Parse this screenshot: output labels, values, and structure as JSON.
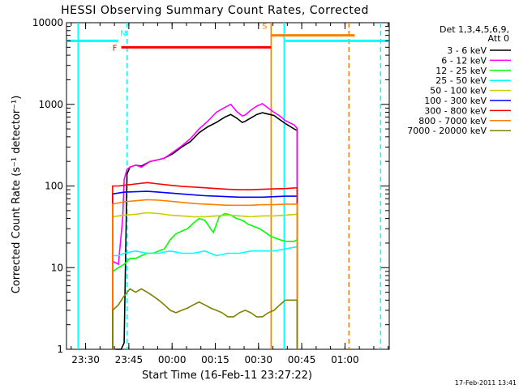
{
  "chart_data": {
    "type": "line",
    "title": "HESSI Observing Summary Count Rates, Corrected",
    "xlabel": "Start Time (16-Feb-11 23:27:22)",
    "ylabel": "Corrected Count Rate (s⁻¹ detector⁻¹)",
    "yscale": "log",
    "ylim": [
      1,
      10000
    ],
    "xlim_minutes_after_start": [
      -4,
      108
    ],
    "x_ticks": [
      "23:30",
      "23:45",
      "00:00",
      "00:15",
      "00:30",
      "00:45",
      "01:00"
    ],
    "y_ticks": [
      "1",
      "10",
      "100",
      "1000",
      "10000"
    ],
    "timestamp": "17-Feb-2011 13:41",
    "legend": {
      "header1": "Det 1,3,4,5,6,9,",
      "header2": "Att 0",
      "placement": "top-right outside"
    },
    "flags": [
      {
        "label": "F",
        "color": "#ff0000",
        "value": 5000,
        "t_start": 15,
        "t_end": 67
      },
      {
        "label": "N",
        "color": "#00ffff",
        "value": 6000,
        "t_start": -4,
        "t_end": 14
      },
      {
        "label": "N",
        "color": "#00ffff",
        "value": 6000,
        "t_start": 72,
        "t_end": 108
      },
      {
        "label": "S",
        "color": "#ff8000",
        "value": 7000,
        "t_start": 67,
        "t_end": 96
      }
    ],
    "vlines": [
      {
        "t": 0,
        "color": "#00ffff",
        "style": "solid"
      },
      {
        "t": 17,
        "color": "#00ffff",
        "style": "dashed"
      },
      {
        "t": 71.5,
        "color": "#00ffff",
        "style": "solid"
      },
      {
        "t": 105,
        "color": "#00ffff",
        "style": "dashed"
      },
      {
        "t": 67,
        "color": "#ff8000",
        "style": "solid"
      },
      {
        "t": 94,
        "color": "#ff8000",
        "style": "dashed"
      }
    ],
    "series": [
      {
        "name": "3 - 6 keV",
        "color": "#000000",
        "points": [
          [
            13,
            1
          ],
          [
            15,
            1
          ],
          [
            16,
            1.2
          ],
          [
            17,
            140
          ],
          [
            18,
            170
          ],
          [
            20,
            180
          ],
          [
            22,
            175
          ],
          [
            25,
            200
          ],
          [
            28,
            210
          ],
          [
            30,
            220
          ],
          [
            33,
            250
          ],
          [
            36,
            300
          ],
          [
            39,
            350
          ],
          [
            42,
            450
          ],
          [
            45,
            530
          ],
          [
            48,
            600
          ],
          [
            51,
            700
          ],
          [
            53,
            750
          ],
          [
            55,
            680
          ],
          [
            57,
            600
          ],
          [
            58,
            620
          ],
          [
            60,
            680
          ],
          [
            62,
            750
          ],
          [
            64,
            790
          ],
          [
            66,
            760
          ],
          [
            68,
            730
          ],
          [
            70,
            650
          ],
          [
            72,
            580
          ],
          [
            75,
            500
          ],
          [
            76,
            480
          ]
        ]
      },
      {
        "name": "6 - 12 keV",
        "color": "#ff00ff",
        "points": [
          [
            12,
            12
          ],
          [
            14,
            11
          ],
          [
            15.5,
            40
          ],
          [
            16,
            120
          ],
          [
            17,
            160
          ],
          [
            18,
            170
          ],
          [
            20,
            180
          ],
          [
            22,
            170
          ],
          [
            25,
            200
          ],
          [
            28,
            210
          ],
          [
            30,
            220
          ],
          [
            33,
            260
          ],
          [
            36,
            310
          ],
          [
            39,
            380
          ],
          [
            42,
            500
          ],
          [
            45,
            620
          ],
          [
            48,
            800
          ],
          [
            51,
            920
          ],
          [
            53,
            1000
          ],
          [
            55,
            820
          ],
          [
            57,
            720
          ],
          [
            58,
            740
          ],
          [
            60,
            850
          ],
          [
            62,
            950
          ],
          [
            64,
            1020
          ],
          [
            66,
            900
          ],
          [
            68,
            800
          ],
          [
            70,
            720
          ],
          [
            72,
            630
          ],
          [
            75,
            560
          ],
          [
            76,
            510
          ]
        ]
      },
      {
        "name": "12 - 25 keV",
        "color": "#00ff00",
        "points": [
          [
            12,
            9
          ],
          [
            14,
            10
          ],
          [
            16,
            11
          ],
          [
            18,
            13
          ],
          [
            20,
            13
          ],
          [
            22,
            14
          ],
          [
            24,
            15
          ],
          [
            26,
            15
          ],
          [
            28,
            16
          ],
          [
            30,
            17
          ],
          [
            32,
            22
          ],
          [
            34,
            26
          ],
          [
            36,
            28
          ],
          [
            38,
            30
          ],
          [
            40,
            35
          ],
          [
            42,
            40
          ],
          [
            44,
            38
          ],
          [
            46,
            30
          ],
          [
            47,
            27
          ],
          [
            49,
            42
          ],
          [
            51,
            46
          ],
          [
            53,
            44
          ],
          [
            55,
            40
          ],
          [
            57,
            38
          ],
          [
            59,
            34
          ],
          [
            61,
            32
          ],
          [
            63,
            30
          ],
          [
            65,
            27
          ],
          [
            67,
            24
          ],
          [
            70,
            22
          ],
          [
            72,
            21
          ],
          [
            75,
            21
          ],
          [
            76,
            22
          ]
        ]
      },
      {
        "name": "25 - 50 keV",
        "color": "#00ffff",
        "points": [
          [
            12,
            14
          ],
          [
            14,
            14
          ],
          [
            16,
            15
          ],
          [
            20,
            16
          ],
          [
            24,
            15
          ],
          [
            28,
            15
          ],
          [
            32,
            16
          ],
          [
            36,
            15
          ],
          [
            40,
            15
          ],
          [
            44,
            16
          ],
          [
            48,
            14
          ],
          [
            52,
            15
          ],
          [
            56,
            15
          ],
          [
            60,
            16
          ],
          [
            64,
            16
          ],
          [
            68,
            16
          ],
          [
            72,
            17
          ],
          [
            76,
            18
          ]
        ]
      },
      {
        "name": "50 - 100 keV",
        "color": "#cccc00",
        "points": [
          [
            12,
            42
          ],
          [
            14,
            43
          ],
          [
            16,
            44
          ],
          [
            20,
            45
          ],
          [
            24,
            47
          ],
          [
            28,
            46
          ],
          [
            32,
            44
          ],
          [
            36,
            43
          ],
          [
            40,
            42
          ],
          [
            44,
            42
          ],
          [
            48,
            43
          ],
          [
            52,
            44
          ],
          [
            56,
            43
          ],
          [
            60,
            42
          ],
          [
            64,
            43
          ],
          [
            68,
            43
          ],
          [
            72,
            44
          ],
          [
            76,
            45
          ]
        ]
      },
      {
        "name": "100 - 300 keV",
        "color": "#0000ff",
        "points": [
          [
            12,
            80
          ],
          [
            14,
            82
          ],
          [
            16,
            84
          ],
          [
            20,
            85
          ],
          [
            24,
            86
          ],
          [
            28,
            84
          ],
          [
            32,
            82
          ],
          [
            36,
            80
          ],
          [
            40,
            78
          ],
          [
            44,
            76
          ],
          [
            48,
            75
          ],
          [
            52,
            74
          ],
          [
            56,
            73
          ],
          [
            60,
            73
          ],
          [
            64,
            73
          ],
          [
            68,
            74
          ],
          [
            72,
            75
          ],
          [
            76,
            75
          ]
        ]
      },
      {
        "name": "300 - 800 keV",
        "color": "#ff0000",
        "points": [
          [
            12,
            100
          ],
          [
            14,
            100
          ],
          [
            16,
            102
          ],
          [
            20,
            106
          ],
          [
            24,
            110
          ],
          [
            28,
            106
          ],
          [
            32,
            102
          ],
          [
            36,
            99
          ],
          [
            40,
            97
          ],
          [
            44,
            95
          ],
          [
            48,
            93
          ],
          [
            52,
            91
          ],
          [
            56,
            90
          ],
          [
            60,
            90
          ],
          [
            64,
            91
          ],
          [
            68,
            92
          ],
          [
            72,
            93
          ],
          [
            76,
            95
          ]
        ]
      },
      {
        "name": "800 - 7000 keV",
        "color": "#ff8000",
        "points": [
          [
            12,
            60
          ],
          [
            14,
            62
          ],
          [
            16,
            64
          ],
          [
            20,
            66
          ],
          [
            24,
            68
          ],
          [
            28,
            67
          ],
          [
            32,
            65
          ],
          [
            36,
            63
          ],
          [
            40,
            61
          ],
          [
            44,
            60
          ],
          [
            48,
            59
          ],
          [
            52,
            58
          ],
          [
            56,
            58
          ],
          [
            60,
            58
          ],
          [
            64,
            59
          ],
          [
            68,
            59
          ],
          [
            72,
            60
          ],
          [
            76,
            60
          ]
        ]
      },
      {
        "name": "7000 - 20000 keV",
        "color": "#808000",
        "points": [
          [
            12,
            3
          ],
          [
            14,
            3.5
          ],
          [
            16,
            4.5
          ],
          [
            18,
            5.5
          ],
          [
            20,
            5
          ],
          [
            22,
            5.5
          ],
          [
            24,
            5
          ],
          [
            26,
            4.5
          ],
          [
            28,
            4
          ],
          [
            30,
            3.5
          ],
          [
            32,
            3
          ],
          [
            34,
            2.8
          ],
          [
            36,
            3
          ],
          [
            38,
            3.2
          ],
          [
            40,
            3.5
          ],
          [
            42,
            3.8
          ],
          [
            44,
            3.5
          ],
          [
            46,
            3.2
          ],
          [
            48,
            3
          ],
          [
            50,
            2.8
          ],
          [
            52,
            2.5
          ],
          [
            54,
            2.5
          ],
          [
            56,
            2.8
          ],
          [
            58,
            3
          ],
          [
            60,
            2.8
          ],
          [
            62,
            2.5
          ],
          [
            64,
            2.5
          ],
          [
            66,
            2.8
          ],
          [
            68,
            3
          ],
          [
            70,
            3.5
          ],
          [
            72,
            4
          ],
          [
            74,
            4
          ],
          [
            76,
            4
          ]
        ]
      }
    ]
  }
}
